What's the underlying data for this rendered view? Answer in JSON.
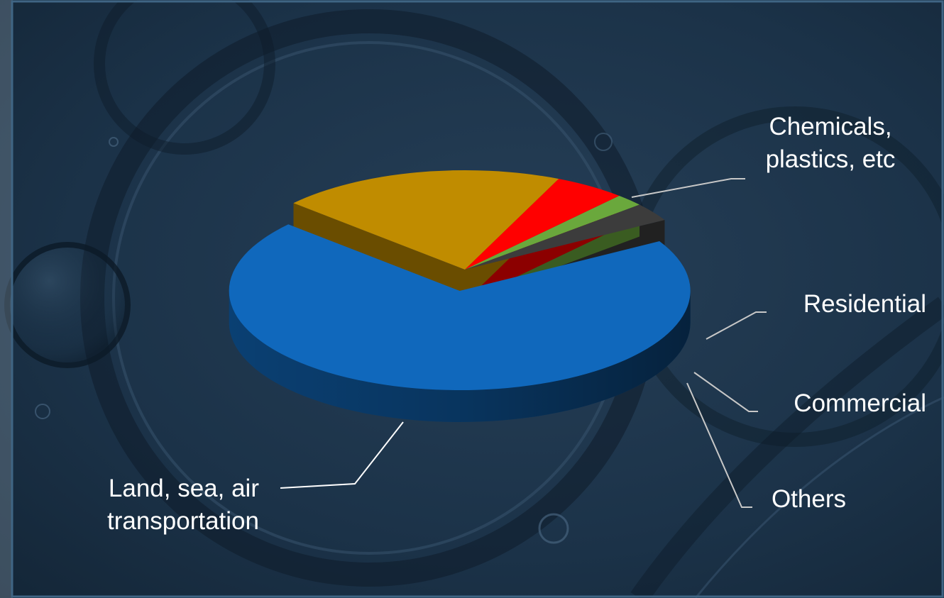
{
  "chart_data": {
    "type": "pie",
    "title": "",
    "categories": [
      "Land, sea, air transportation",
      "Chemicals, plastics, etc",
      "Residential",
      "Commercial",
      "Others"
    ],
    "label_lines": [
      [
        "Land, sea, air",
        "transportation"
      ],
      [
        "Chemicals,",
        "plastics, etc"
      ],
      [
        "Residential"
      ],
      [
        "Commercial"
      ],
      [
        "Others"
      ]
    ],
    "values": [
      70,
      20,
      5,
      2,
      3
    ],
    "unit": "percent (estimated)",
    "colors": [
      "#1068bc",
      "#c08c00",
      "#ff0000",
      "#6aa83c",
      "#3c3c3c"
    ],
    "legend": "none (callout labels)",
    "style": "3D pie with first slice exploded"
  },
  "background": {
    "base_color": "#1a2f44",
    "frame_color": "#3f6584"
  }
}
